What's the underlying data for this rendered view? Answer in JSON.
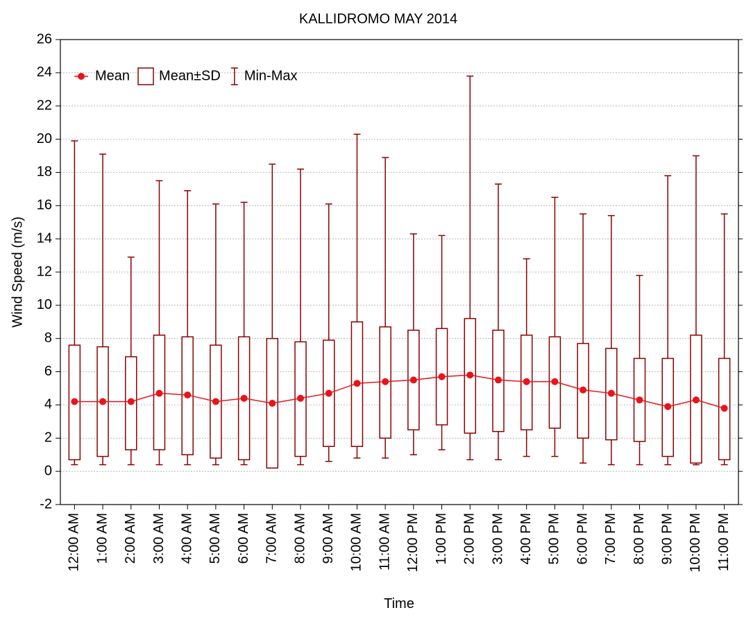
{
  "chart_data": {
    "type": "box",
    "title": "KALLIDROMO MAY 2014",
    "x_label": "Time",
    "y_label": "Wind Speed (m/s)",
    "categories": [
      "12:00 AM",
      "1:00 AM",
      "2:00 AM",
      "3:00 AM",
      "4:00 AM",
      "5:00 AM",
      "6:00 AM",
      "7:00 AM",
      "8:00 AM",
      "9:00 AM",
      "10:00 AM",
      "11:00 AM",
      "12:00 PM",
      "1:00 PM",
      "2:00 PM",
      "3:00 PM",
      "4:00 PM",
      "5:00 PM",
      "6:00 PM",
      "7:00 PM",
      "8:00 PM",
      "9:00 PM",
      "10:00 PM",
      "11:00 PM"
    ],
    "series": [
      {
        "name": "Mean",
        "color": "#e8141b",
        "values": [
          4.2,
          4.2,
          4.2,
          4.7,
          4.6,
          4.2,
          4.4,
          4.1,
          4.4,
          4.7,
          5.3,
          5.4,
          5.5,
          5.7,
          5.8,
          5.5,
          5.4,
          5.4,
          4.9,
          4.7,
          4.3,
          3.9,
          4.3,
          3.8
        ]
      },
      {
        "name": "Mean±SD",
        "color": "#8b0000",
        "low": [
          0.7,
          0.9,
          1.3,
          1.3,
          1.0,
          0.8,
          0.7,
          0.2,
          0.9,
          1.5,
          1.5,
          2.0,
          2.5,
          2.8,
          2.3,
          2.4,
          2.5,
          2.6,
          2.0,
          1.9,
          1.8,
          0.9,
          0.5,
          0.7
        ],
        "high": [
          7.6,
          7.5,
          6.9,
          8.2,
          8.1,
          7.6,
          8.1,
          8.0,
          7.8,
          7.9,
          9.0,
          8.7,
          8.5,
          8.6,
          9.2,
          8.5,
          8.2,
          8.1,
          7.7,
          7.4,
          6.8,
          6.8,
          8.2,
          6.8
        ]
      },
      {
        "name": "Min-Max",
        "color": "#8b0000",
        "low": [
          0.4,
          0.4,
          0.4,
          0.4,
          0.4,
          0.4,
          0.4,
          0.2,
          0.4,
          0.6,
          0.8,
          0.8,
          1.0,
          1.3,
          0.7,
          0.7,
          0.9,
          0.9,
          0.5,
          0.4,
          0.4,
          0.4,
          0.4,
          0.4
        ],
        "high": [
          19.9,
          19.1,
          12.9,
          17.5,
          16.9,
          16.1,
          16.2,
          18.5,
          18.2,
          16.1,
          20.3,
          18.9,
          14.3,
          14.2,
          23.8,
          17.3,
          12.8,
          16.5,
          15.5,
          15.4,
          11.8,
          17.8,
          19.0,
          15.5
        ]
      }
    ],
    "ylim": [
      -2,
      26
    ],
    "yticks": [
      -2,
      0,
      2,
      4,
      6,
      8,
      10,
      12,
      14,
      16,
      18,
      20,
      22,
      24,
      26
    ],
    "grid": true,
    "legend": "upper left"
  }
}
